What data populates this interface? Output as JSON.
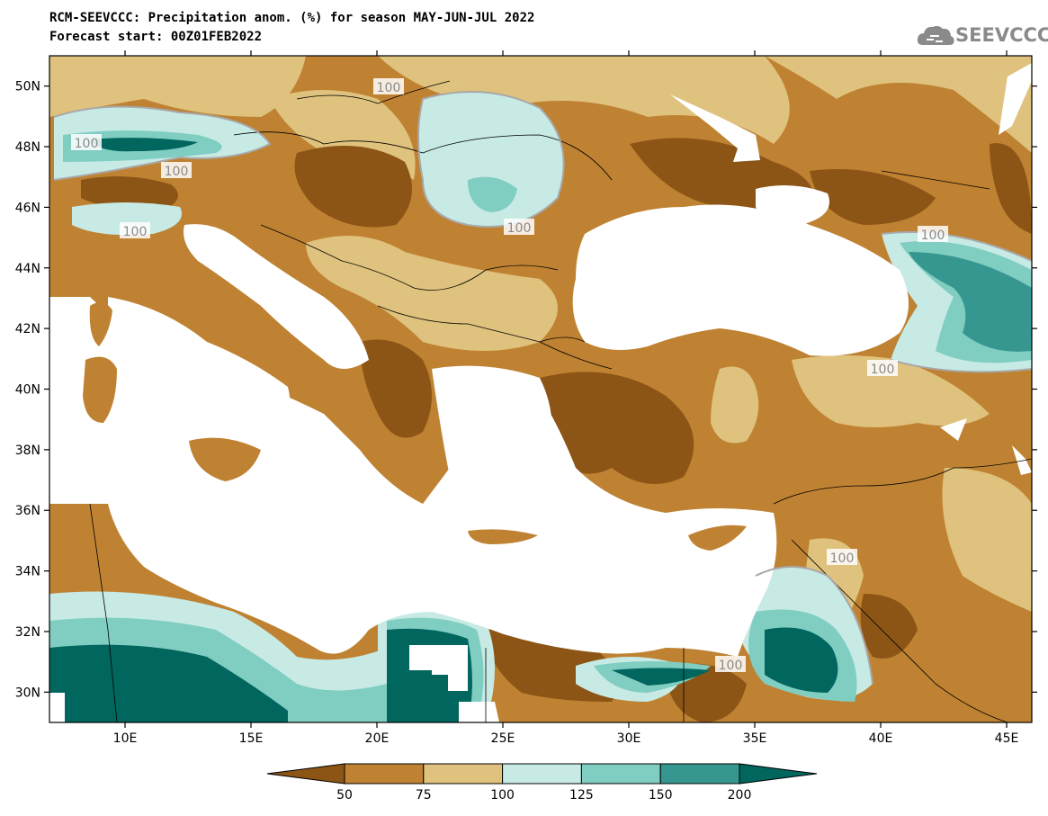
{
  "title_line1": "RCM-SEEVCCC: Precipitation anom. (%) for season MAY-JUN-JUL 2022",
  "title_line2": "Forecast start: 00Z01FEB2022",
  "logo_text": "SEEVCCC",
  "axes": {
    "lat_labels": [
      "50N",
      "48N",
      "46N",
      "44N",
      "42N",
      "40N",
      "38N",
      "36N",
      "34N",
      "32N",
      "30N"
    ],
    "lon_labels": [
      "10E",
      "15E",
      "20E",
      "25E",
      "30E",
      "35E",
      "40E",
      "45E"
    ],
    "lat_range": [
      29.0,
      51.0
    ],
    "lon_range": [
      7.0,
      46.0
    ]
  },
  "contour_label": "100",
  "colorbar": {
    "levels": [
      "50",
      "75",
      "100",
      "125",
      "150",
      "200"
    ],
    "colors": [
      "#8c5516",
      "#bf8232",
      "#dfc27d",
      "#c7eae5",
      "#80cdc1",
      "#35978f",
      "#01665e"
    ]
  }
}
